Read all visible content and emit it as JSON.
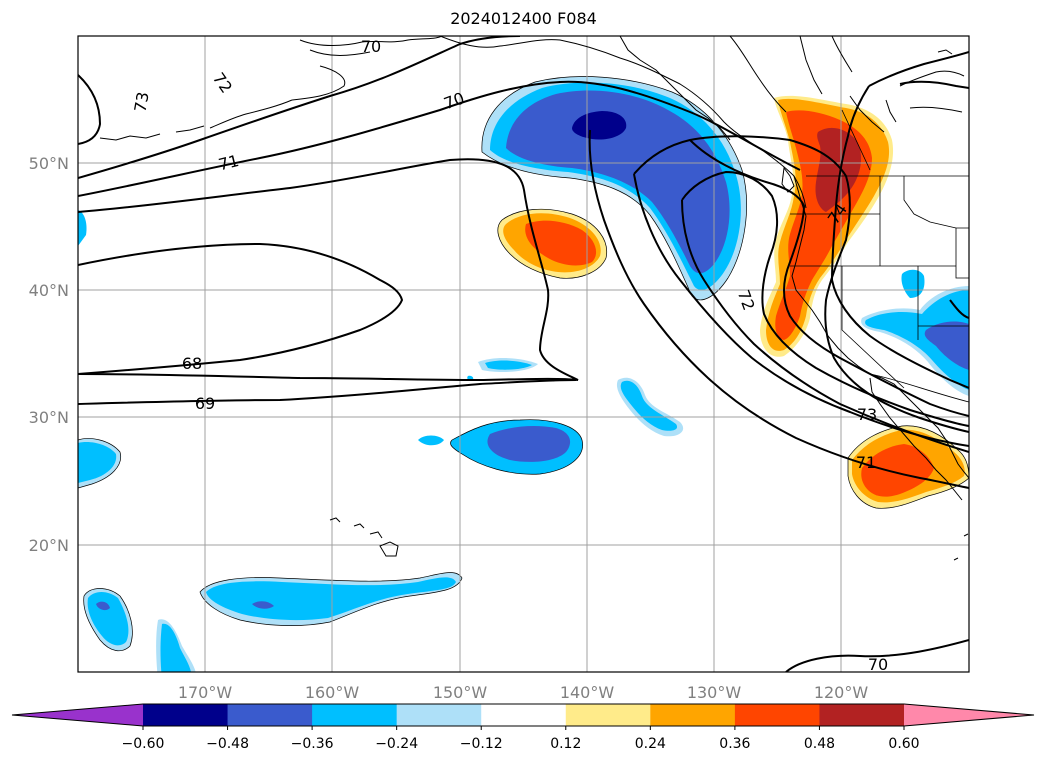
{
  "title": "2024012400 F084",
  "lon_labels": [
    "170°W",
    "160°W",
    "150°W",
    "140°W",
    "130°W",
    "120°W"
  ],
  "lat_labels": [
    "50°N",
    "40°N",
    "30°N",
    "20°N"
  ],
  "contour_labels": [
    "73",
    "72",
    "70",
    "70",
    "71",
    "68",
    "69",
    "72",
    "73",
    "71",
    "74",
    "70"
  ],
  "colorbar": {
    "ticks": [
      "−0.60",
      "−0.48",
      "−0.36",
      "−0.24",
      "−0.12",
      "0.12",
      "0.24",
      "0.36",
      "0.48",
      "0.60"
    ],
    "colors": [
      "#9932cc",
      "#00008b",
      "#3a5bcd",
      "#00bfff",
      "#aee0f8",
      "#ffffff",
      "#ffeb8a",
      "#ffa500",
      "#ff4500",
      "#b22222",
      "#ff88aa"
    ]
  }
}
